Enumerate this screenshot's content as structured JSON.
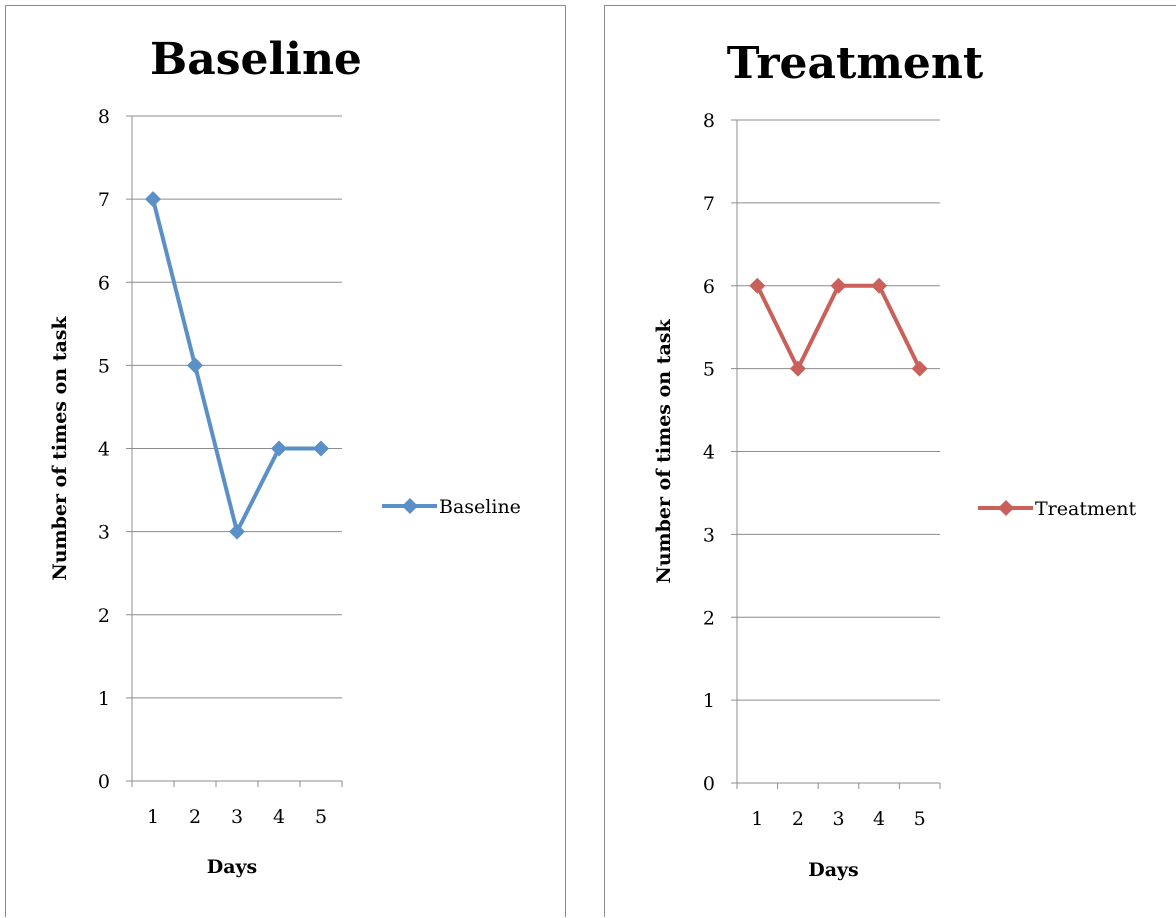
{
  "chart_data": [
    {
      "type": "line",
      "title": "Baseline",
      "xlabel": "Days",
      "ylabel": "Number of times on task",
      "categories": [
        "1",
        "2",
        "3",
        "4",
        "5"
      ],
      "ylim": [
        0,
        8
      ],
      "yticks": [
        "0",
        "1",
        "2",
        "3",
        "4",
        "5",
        "6",
        "7",
        "8"
      ],
      "grid": true,
      "legend_position": "right",
      "series": [
        {
          "name": "Baseline",
          "color": "#5b8fc7",
          "marker": "diamond",
          "values": [
            7,
            5,
            3,
            4,
            4
          ]
        }
      ]
    },
    {
      "type": "line",
      "title": "Treatment",
      "xlabel": "Days",
      "ylabel": "Number of times on task",
      "categories": [
        "1",
        "2",
        "3",
        "4",
        "5"
      ],
      "ylim": [
        0,
        8
      ],
      "yticks": [
        "0",
        "1",
        "2",
        "3",
        "4",
        "5",
        "6",
        "7",
        "8"
      ],
      "grid": true,
      "legend_position": "right",
      "series": [
        {
          "name": "Treatment",
          "color": "#c9605a",
          "marker": "diamond",
          "values": [
            6,
            5,
            6,
            6,
            5
          ]
        }
      ]
    }
  ]
}
